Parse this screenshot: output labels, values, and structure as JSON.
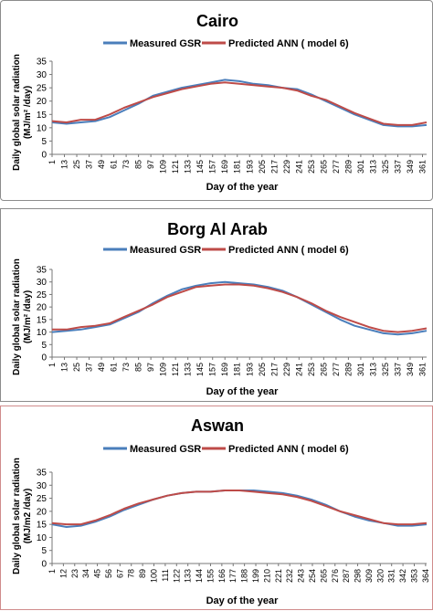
{
  "chart_data": [
    {
      "type": "line",
      "title": "Cairo",
      "xlabel": "Day of the year",
      "ylabel_line1": "Daily global solar radiation",
      "ylabel_line2": "(MJ/m² /day)",
      "ylim": [
        0,
        35
      ],
      "yticks": [
        0,
        5,
        10,
        15,
        20,
        25,
        30,
        35
      ],
      "xlim": [
        1,
        365
      ],
      "xticks": [
        1,
        13,
        25,
        37,
        49,
        61,
        73,
        85,
        97,
        109,
        121,
        133,
        145,
        157,
        169,
        181,
        193,
        205,
        217,
        229,
        241,
        253,
        265,
        277,
        289,
        301,
        313,
        325,
        337,
        349,
        361
      ],
      "legend": "top-center",
      "grid": false,
      "x": [
        1,
        15,
        29,
        43,
        57,
        71,
        85,
        99,
        113,
        127,
        141,
        155,
        169,
        183,
        197,
        211,
        225,
        239,
        253,
        267,
        281,
        295,
        309,
        323,
        337,
        351,
        365
      ],
      "series": [
        {
          "name": "Measured GSR",
          "color": "#4a7ebb",
          "values": [
            12,
            11.5,
            12,
            12.5,
            14,
            16.5,
            19,
            22,
            23.5,
            25,
            26,
            27,
            28,
            27.5,
            26.5,
            26,
            25,
            24.5,
            22.5,
            20,
            17.5,
            15,
            13,
            11,
            10.5,
            10.5,
            11
          ]
        },
        {
          "name": "Predicted ANN ( model 6)",
          "color": "#be4b48",
          "values": [
            12.5,
            12,
            13,
            13,
            15,
            17.5,
            19.5,
            21.5,
            23,
            24.5,
            25.5,
            26.5,
            27,
            26.5,
            26,
            25.5,
            25,
            24,
            22,
            20.5,
            18,
            15.5,
            13.5,
            11.5,
            11,
            11,
            12
          ]
        }
      ]
    },
    {
      "type": "line",
      "title": "Borg Al Arab",
      "xlabel": "Day of the year",
      "ylabel_line1": "Daily global solar radiation",
      "ylabel_line2": "(MJ/m² /day)",
      "ylim": [
        0,
        35
      ],
      "yticks": [
        0,
        5,
        10,
        15,
        20,
        25,
        30,
        35
      ],
      "xlim": [
        1,
        365
      ],
      "xticks": [
        1,
        13,
        25,
        37,
        49,
        61,
        73,
        85,
        97,
        109,
        121,
        133,
        145,
        157,
        169,
        181,
        193,
        205,
        217,
        229,
        241,
        253,
        265,
        277,
        289,
        301,
        313,
        325,
        337,
        349,
        361
      ],
      "legend": "top-center",
      "grid": false,
      "x": [
        1,
        15,
        29,
        43,
        57,
        71,
        85,
        99,
        113,
        127,
        141,
        155,
        169,
        183,
        197,
        211,
        225,
        239,
        253,
        267,
        281,
        295,
        309,
        323,
        337,
        351,
        365
      ],
      "series": [
        {
          "name": "Measured GSR",
          "color": "#4a7ebb",
          "values": [
            10,
            10.5,
            11,
            12,
            13,
            15.5,
            18,
            21.5,
            24.5,
            27,
            28.5,
            29.5,
            30,
            29.5,
            29,
            28,
            26.5,
            24,
            21,
            18,
            15,
            12.5,
            11,
            9.5,
            9,
            9.5,
            10.5
          ]
        },
        {
          "name": "Predicted ANN ( model 6)",
          "color": "#be4b48",
          "values": [
            11,
            11,
            12,
            12.5,
            13.5,
            16,
            18.5,
            21,
            24,
            26,
            28,
            28.5,
            29,
            29,
            28.5,
            27.5,
            26,
            24,
            21.5,
            18.5,
            16,
            14,
            12,
            10.5,
            10,
            10.5,
            11.5
          ]
        }
      ]
    },
    {
      "type": "line",
      "title": "Aswan",
      "xlabel": "Day of the year",
      "ylabel_line1": "Daily global solar radiation",
      "ylabel_line2": "(MJ/m2 /day)",
      "ylim": [
        0,
        35
      ],
      "yticks": [
        0,
        5,
        10,
        15,
        20,
        25,
        30,
        35
      ],
      "xlim": [
        1,
        365
      ],
      "xticks": [
        1,
        12,
        23,
        34,
        45,
        56,
        67,
        78,
        89,
        100,
        111,
        122,
        133,
        144,
        155,
        166,
        177,
        188,
        199,
        210,
        221,
        232,
        243,
        254,
        265,
        276,
        287,
        298,
        309,
        320,
        331,
        342,
        353,
        364
      ],
      "legend": "top-center",
      "grid": false,
      "x": [
        1,
        15,
        29,
        43,
        57,
        71,
        85,
        99,
        113,
        127,
        141,
        155,
        169,
        183,
        197,
        211,
        225,
        239,
        253,
        267,
        281,
        295,
        309,
        323,
        337,
        351,
        365
      ],
      "series": [
        {
          "name": "Measured GSR",
          "color": "#4a7ebb",
          "values": [
            15,
            14,
            14.5,
            16,
            18,
            20.5,
            22.5,
            24.5,
            26,
            27,
            27.5,
            27.5,
            28,
            28,
            28,
            27.5,
            27,
            26,
            24.5,
            22.5,
            20,
            18,
            16.5,
            15.5,
            14.5,
            14.5,
            15
          ]
        },
        {
          "name": "Predicted ANN ( model 6)",
          "color": "#be4b48",
          "values": [
            15.5,
            15,
            15,
            16.5,
            18.5,
            21,
            23,
            24.5,
            26,
            27,
            27.5,
            27.5,
            28,
            28,
            27.5,
            27,
            26.5,
            25.5,
            24,
            22,
            20,
            18.5,
            17,
            15.5,
            15,
            15,
            15.5
          ]
        }
      ]
    }
  ]
}
